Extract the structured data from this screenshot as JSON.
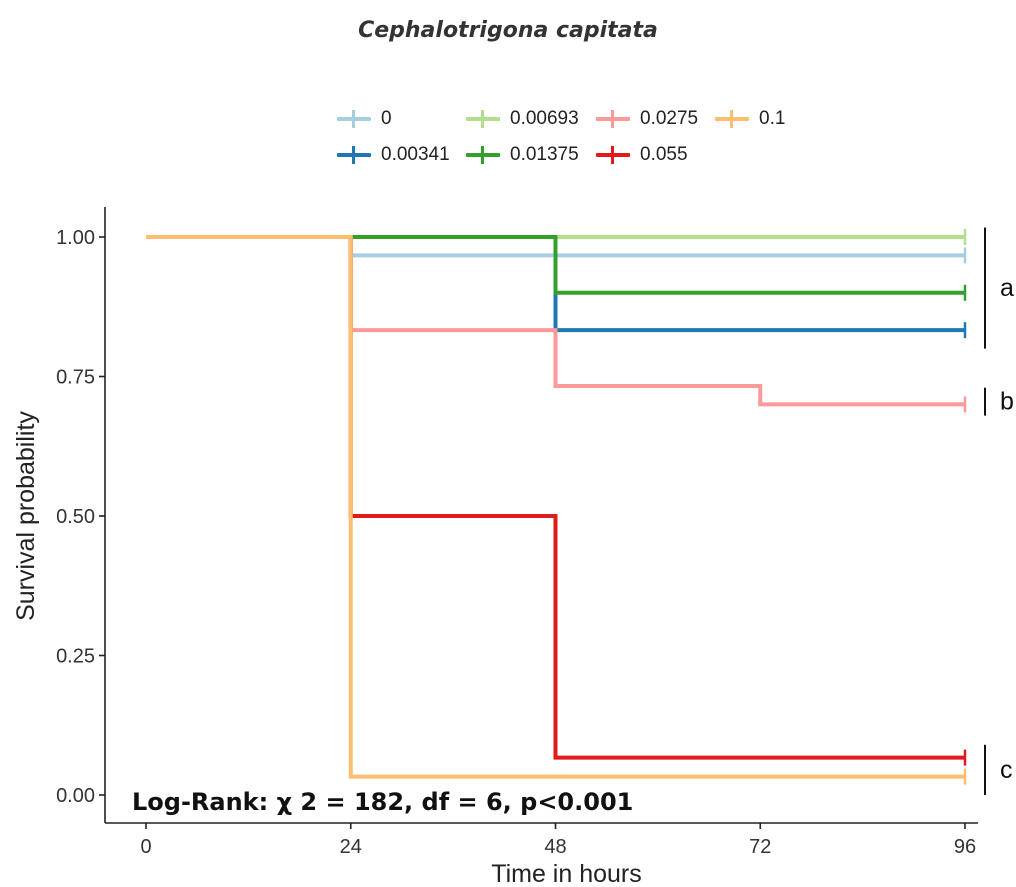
{
  "chart_data": {
    "type": "line",
    "step": true,
    "title": "Cephalotrigona capitata",
    "xlabel": "Time in hours",
    "ylabel": "Survival probability",
    "xlim": [
      0,
      96
    ],
    "ylim": [
      0,
      1
    ],
    "xticks": [
      0,
      24,
      48,
      72,
      96
    ],
    "xtick_labels": [
      "0",
      "24",
      "48",
      "72",
      "96"
    ],
    "yticks": [
      0,
      0.25,
      0.5,
      0.75,
      1
    ],
    "ytick_labels": [
      "0.00",
      "0.25",
      "0.50",
      "0.75",
      "1.00"
    ],
    "grid": false,
    "legend_position": "top",
    "series": [
      {
        "name": "0",
        "color": "#a6cee3",
        "x": [
          0,
          24,
          96
        ],
        "y": [
          1.0,
          0.967,
          0.967
        ]
      },
      {
        "name": "0.00341",
        "color": "#1f78b4",
        "x": [
          0,
          24,
          48,
          96
        ],
        "y": [
          1.0,
          1.0,
          0.833,
          0.833
        ]
      },
      {
        "name": "0.00693",
        "color": "#b2df8a",
        "x": [
          0,
          96
        ],
        "y": [
          1.0,
          1.0
        ]
      },
      {
        "name": "0.01375",
        "color": "#33a02c",
        "x": [
          0,
          24,
          48,
          96
        ],
        "y": [
          1.0,
          1.0,
          0.9,
          0.9
        ]
      },
      {
        "name": "0.0275",
        "color": "#fb9a99",
        "x": [
          0,
          24,
          48,
          72,
          96
        ],
        "y": [
          1.0,
          0.833,
          0.733,
          0.7,
          0.7
        ]
      },
      {
        "name": "0.055",
        "color": "#e31a1c",
        "x": [
          0,
          24,
          48,
          96
        ],
        "y": [
          1.0,
          0.5,
          0.067,
          0.067
        ]
      },
      {
        "name": "0.1",
        "color": "#fdbf6f",
        "x": [
          0,
          24,
          96
        ],
        "y": [
          1.0,
          0.033,
          0.033
        ]
      }
    ],
    "groups": [
      {
        "label": "a",
        "y_range": [
          0.8,
          1.017
        ]
      },
      {
        "label": "b",
        "y_range": [
          0.68,
          0.73
        ]
      },
      {
        "label": "c",
        "y_range": [
          0.0,
          0.09
        ]
      }
    ],
    "annotation": "Log-Rank: χ 2 = 182, df = 6, p<0.001"
  }
}
